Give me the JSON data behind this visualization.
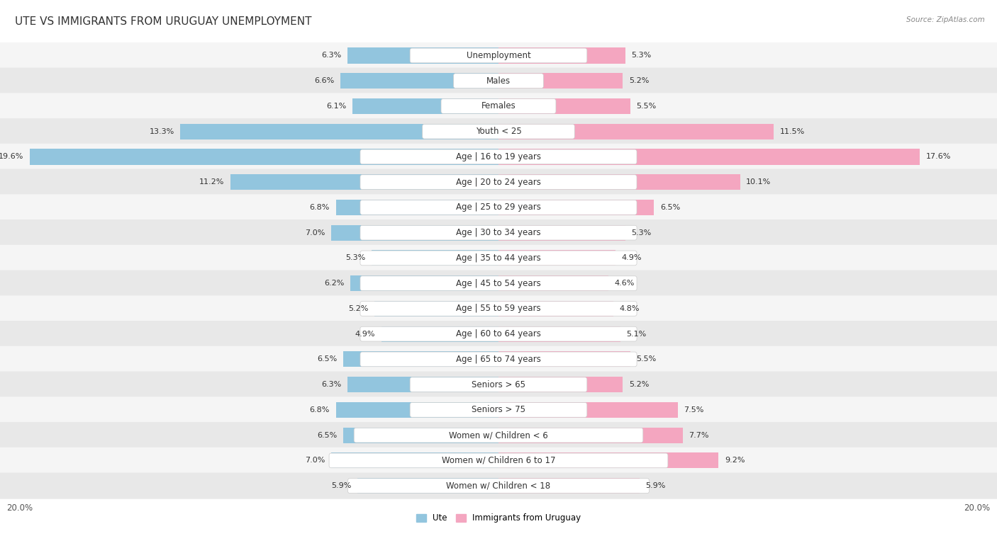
{
  "title": "Ute vs Immigrants from Uruguay Unemployment",
  "source": "Source: ZipAtlas.com",
  "categories": [
    "Unemployment",
    "Males",
    "Females",
    "Youth < 25",
    "Age | 16 to 19 years",
    "Age | 20 to 24 years",
    "Age | 25 to 29 years",
    "Age | 30 to 34 years",
    "Age | 35 to 44 years",
    "Age | 45 to 54 years",
    "Age | 55 to 59 years",
    "Age | 60 to 64 years",
    "Age | 65 to 74 years",
    "Seniors > 65",
    "Seniors > 75",
    "Women w/ Children < 6",
    "Women w/ Children 6 to 17",
    "Women w/ Children < 18"
  ],
  "ute_values": [
    6.3,
    6.6,
    6.1,
    13.3,
    19.6,
    11.2,
    6.8,
    7.0,
    5.3,
    6.2,
    5.2,
    4.9,
    6.5,
    6.3,
    6.8,
    6.5,
    7.0,
    5.9
  ],
  "imm_values": [
    5.3,
    5.2,
    5.5,
    11.5,
    17.6,
    10.1,
    6.5,
    5.3,
    4.9,
    4.6,
    4.8,
    5.1,
    5.5,
    5.2,
    7.5,
    7.7,
    9.2,
    5.9
  ],
  "ute_color": "#92c5de",
  "imm_color": "#f4a6c0",
  "ute_color_dark": "#5b9fc8",
  "imm_color_dark": "#e8799e",
  "xlim": 20.0,
  "bar_height": 0.62,
  "x_axis_tick": "20.0%",
  "legend_ute": "Ute",
  "legend_imm": "Immigrants from Uruguay",
  "background_color": "#ffffff",
  "row_colors": [
    "#f5f5f5",
    "#e8e8e8"
  ],
  "title_fontsize": 11,
  "source_fontsize": 7.5,
  "label_fontsize": 8.5,
  "value_fontsize": 8,
  "title_color": "#333333",
  "value_color": "#333333",
  "label_color": "#333333"
}
